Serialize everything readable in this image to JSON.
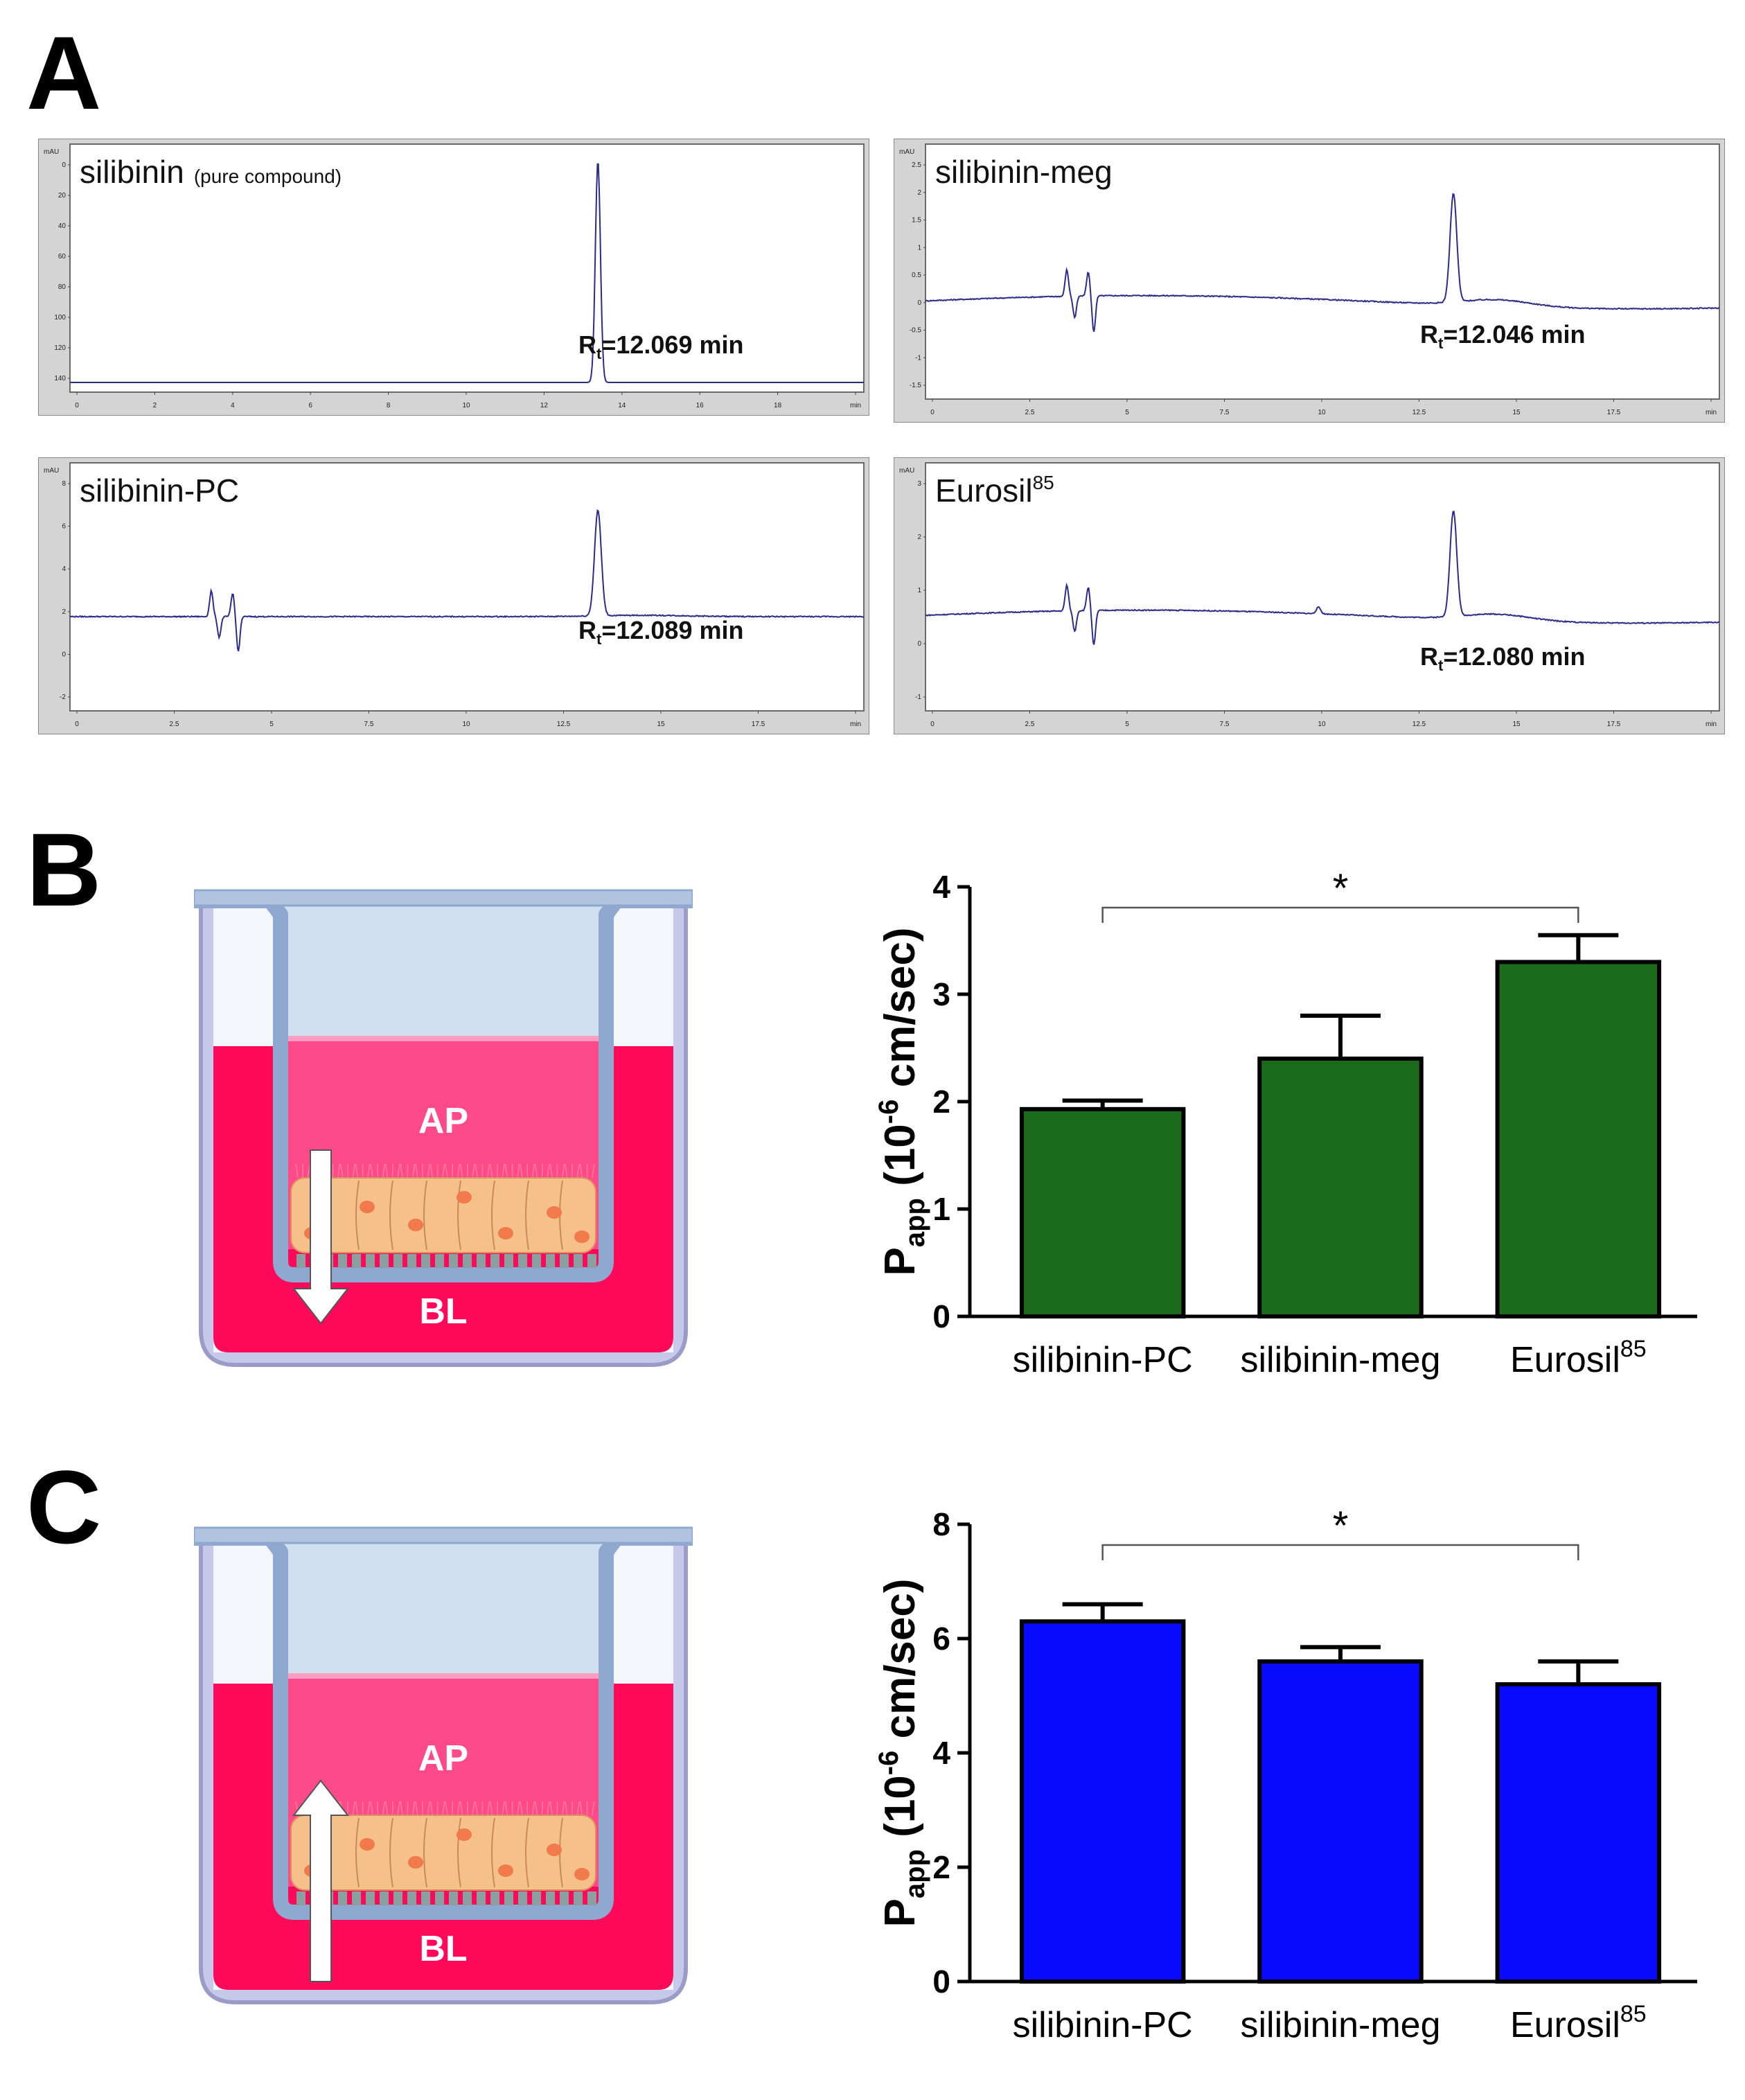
{
  "panels": {
    "a": "A",
    "b": "B",
    "c": "C"
  },
  "chromatograms": [
    {
      "title": "silibinin",
      "subtitle": "(pure compound)",
      "rt_prefix": "R",
      "rt_sub": "t",
      "rt_value": "=12.069 min",
      "unit": "mAU",
      "y_ticks": [
        "0",
        "20",
        "40",
        "60",
        "80",
        "100",
        "120",
        "140"
      ],
      "x_ticks": [
        "0",
        "2",
        "4",
        "6",
        "8",
        "10",
        "12",
        "14",
        "16",
        "18",
        "min"
      ]
    },
    {
      "title": "silibinin-meg",
      "subtitle": "",
      "rt_prefix": "R",
      "rt_sub": "t",
      "rt_value": "=12.046 min",
      "unit": "mAU",
      "y_ticks": [
        "2.5",
        "2",
        "1.5",
        "1",
        "0.5",
        "0",
        "-0.5",
        "-1",
        "-1.5"
      ],
      "x_ticks": [
        "0",
        "2.5",
        "5",
        "7.5",
        "10",
        "12.5",
        "15",
        "17.5",
        "min"
      ]
    },
    {
      "title": "silibinin-PC",
      "subtitle": "",
      "rt_prefix": "R",
      "rt_sub": "t",
      "rt_value": "=12.089 min",
      "unit": "mAU",
      "y_ticks": [
        "8",
        "6",
        "4",
        "2",
        "0",
        "-2"
      ],
      "x_ticks": [
        "0",
        "2.5",
        "5",
        "7.5",
        "10",
        "12.5",
        "15",
        "17.5",
        "min"
      ]
    },
    {
      "title": "Eurosil",
      "title_sup": "85",
      "subtitle": "",
      "rt_prefix": "R",
      "rt_sub": "t",
      "rt_value": "=12.080 min",
      "unit": "mAU",
      "y_ticks": [
        "3",
        "2",
        "1",
        "0",
        "-1"
      ],
      "x_ticks": [
        "0",
        "2.5",
        "5",
        "7.5",
        "10",
        "12.5",
        "15",
        "17.5",
        "min"
      ]
    }
  ],
  "diagrams": [
    {
      "apical": "AP",
      "basolateral": "BL",
      "arrow": "down"
    },
    {
      "apical": "AP",
      "basolateral": "BL",
      "arrow": "up"
    }
  ],
  "chart_data": [
    {
      "type": "bar",
      "ylabel_main": "P",
      "ylabel_sub": "app",
      "ylabel_rest": " (10",
      "ylabel_sup": "-6",
      "ylabel_tail": " cm/sec)",
      "categories": [
        "silibinin-PC",
        "silibinin-meg",
        "Eurosil"
      ],
      "category_sup": [
        "",
        "",
        "85"
      ],
      "values": [
        1.93,
        2.4,
        3.3
      ],
      "errors": [
        0.08,
        0.4,
        0.25
      ],
      "ylim": [
        0,
        4
      ],
      "yticks": [
        "0",
        "1",
        "2",
        "3",
        "4"
      ],
      "significance": {
        "from": 0,
        "to": 2,
        "label": "*"
      },
      "color": "#1c6b1c"
    },
    {
      "type": "bar",
      "ylabel_main": "P",
      "ylabel_sub": "app",
      "ylabel_rest": " (10",
      "ylabel_sup": "-6",
      "ylabel_tail": " cm/sec)",
      "categories": [
        "silibinin-PC",
        "silibinin-meg",
        "Eurosil"
      ],
      "category_sup": [
        "",
        "",
        "85"
      ],
      "values": [
        6.3,
        5.6,
        5.2
      ],
      "errors": [
        0.3,
        0.25,
        0.4
      ],
      "ylim": [
        0,
        8
      ],
      "yticks": [
        "0",
        "2",
        "4",
        "6",
        "8"
      ],
      "significance": {
        "from": 0,
        "to": 2,
        "label": "*"
      },
      "color": "#0a0aff"
    }
  ]
}
